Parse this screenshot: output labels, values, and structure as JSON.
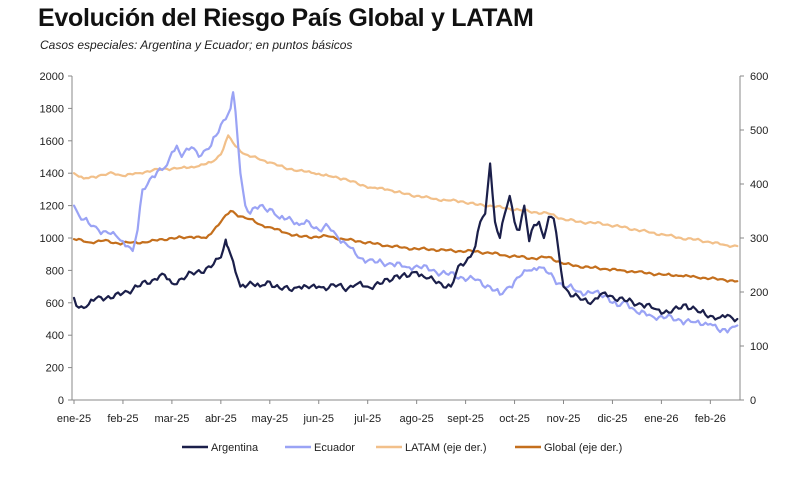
{
  "chart_data": {
    "type": "line",
    "title": "Evolución del Riesgo País Global y LATAM",
    "subtitle": "Casos especiales: Argentina y Ecuador; en puntos básicos",
    "categories": [
      "ene-25",
      "feb-25",
      "mar-25",
      "abr-25",
      "may-25",
      "jun-25",
      "jul-25",
      "ago-25",
      "sept-25",
      "oct-25",
      "nov-25",
      "dic-25",
      "ene-26",
      "feb-26"
    ],
    "y_left": {
      "min": 0,
      "max": 2000,
      "step": 200,
      "ticks": [
        "0",
        "200",
        "400",
        "600",
        "800",
        "1000",
        "1200",
        "1400",
        "1600",
        "1800",
        "2000"
      ]
    },
    "y_right": {
      "min": 0,
      "max": 600,
      "step": 100,
      "ticks": [
        "0",
        "100",
        "200",
        "300",
        "400",
        "500",
        "600"
      ]
    },
    "grid": false,
    "legend_position": "bottom",
    "series": [
      {
        "name": "Argentina",
        "axis": "left",
        "color": "#1b1f4a",
        "width": 2.2,
        "points": [
          [
            0,
            630
          ],
          [
            0.1,
            570
          ],
          [
            0.3,
            590
          ],
          [
            0.5,
            640
          ],
          [
            0.8,
            630
          ],
          [
            1.0,
            660
          ],
          [
            1.3,
            700
          ],
          [
            1.6,
            740
          ],
          [
            1.8,
            780
          ],
          [
            2.0,
            720
          ],
          [
            2.2,
            750
          ],
          [
            2.5,
            790
          ],
          [
            2.8,
            820
          ],
          [
            3.0,
            880
          ],
          [
            3.1,
            990
          ],
          [
            3.15,
            940
          ],
          [
            3.3,
            790
          ],
          [
            3.4,
            700
          ],
          [
            3.6,
            730
          ],
          [
            3.8,
            700
          ],
          [
            4.0,
            730
          ],
          [
            4.2,
            690
          ],
          [
            4.4,
            680
          ],
          [
            4.6,
            700
          ],
          [
            4.8,
            690
          ],
          [
            5.0,
            700
          ],
          [
            5.2,
            690
          ],
          [
            5.4,
            710
          ],
          [
            5.6,
            690
          ],
          [
            5.8,
            720
          ],
          [
            6.0,
            700
          ],
          [
            6.3,
            720
          ],
          [
            6.6,
            770
          ],
          [
            6.8,
            760
          ],
          [
            7.0,
            790
          ],
          [
            7.2,
            750
          ],
          [
            7.5,
            720
          ],
          [
            7.7,
            700
          ],
          [
            7.9,
            840
          ],
          [
            8.0,
            850
          ],
          [
            8.2,
            950
          ],
          [
            8.3,
            1100
          ],
          [
            8.4,
            1150
          ],
          [
            8.5,
            1460
          ],
          [
            8.6,
            1100
          ],
          [
            8.7,
            1000
          ],
          [
            8.8,
            1150
          ],
          [
            8.9,
            1260
          ],
          [
            9.0,
            1100
          ],
          [
            9.1,
            1050
          ],
          [
            9.2,
            1200
          ],
          [
            9.3,
            980
          ],
          [
            9.4,
            1080
          ],
          [
            9.5,
            1100
          ],
          [
            9.6,
            1000
          ],
          [
            9.7,
            1130
          ],
          [
            9.8,
            1120
          ],
          [
            9.9,
            920
          ],
          [
            10.0,
            700
          ],
          [
            10.2,
            640
          ],
          [
            10.4,
            620
          ],
          [
            10.6,
            610
          ],
          [
            10.8,
            660
          ],
          [
            11.0,
            640
          ],
          [
            11.3,
            610
          ],
          [
            11.6,
            590
          ],
          [
            11.9,
            560
          ],
          [
            12.2,
            540
          ],
          [
            12.5,
            590
          ],
          [
            12.8,
            540
          ],
          [
            13.0,
            520
          ],
          [
            13.2,
            510
          ],
          [
            13.4,
            520
          ],
          [
            13.55,
            500
          ]
        ]
      },
      {
        "name": "Ecuador",
        "axis": "left",
        "color": "#9aa3f5",
        "width": 2.2,
        "points": [
          [
            0,
            1200
          ],
          [
            0.1,
            1140
          ],
          [
            0.3,
            1090
          ],
          [
            0.5,
            1050
          ],
          [
            0.7,
            1030
          ],
          [
            0.9,
            1000
          ],
          [
            1.1,
            950
          ],
          [
            1.2,
            920
          ],
          [
            1.3,
            1050
          ],
          [
            1.4,
            1300
          ],
          [
            1.6,
            1380
          ],
          [
            1.8,
            1420
          ],
          [
            1.9,
            1450
          ],
          [
            2.0,
            1530
          ],
          [
            2.1,
            1570
          ],
          [
            2.2,
            1500
          ],
          [
            2.4,
            1560
          ],
          [
            2.6,
            1510
          ],
          [
            2.8,
            1570
          ],
          [
            3.0,
            1700
          ],
          [
            3.2,
            1800
          ],
          [
            3.25,
            1900
          ],
          [
            3.3,
            1780
          ],
          [
            3.4,
            1400
          ],
          [
            3.5,
            1200
          ],
          [
            3.6,
            1150
          ],
          [
            3.8,
            1200
          ],
          [
            4.0,
            1180
          ],
          [
            4.2,
            1120
          ],
          [
            4.4,
            1130
          ],
          [
            4.6,
            1080
          ],
          [
            4.8,
            1100
          ],
          [
            5.0,
            1050
          ],
          [
            5.2,
            1070
          ],
          [
            5.4,
            1000
          ],
          [
            5.6,
            950
          ],
          [
            5.8,
            880
          ],
          [
            6.0,
            860
          ],
          [
            6.2,
            850
          ],
          [
            6.5,
            840
          ],
          [
            6.8,
            820
          ],
          [
            7.0,
            830
          ],
          [
            7.3,
            800
          ],
          [
            7.6,
            780
          ],
          [
            7.9,
            760
          ],
          [
            8.2,
            740
          ],
          [
            8.5,
            700
          ],
          [
            8.7,
            650
          ],
          [
            8.9,
            700
          ],
          [
            9.1,
            760
          ],
          [
            9.3,
            800
          ],
          [
            9.5,
            820
          ],
          [
            9.7,
            780
          ],
          [
            9.9,
            720
          ],
          [
            10.1,
            700
          ],
          [
            10.3,
            670
          ],
          [
            10.6,
            660
          ],
          [
            10.9,
            640
          ],
          [
            11.1,
            580
          ],
          [
            11.3,
            600
          ],
          [
            11.5,
            540
          ],
          [
            11.8,
            520
          ],
          [
            12.1,
            510
          ],
          [
            12.4,
            490
          ],
          [
            12.7,
            480
          ],
          [
            13.0,
            470
          ],
          [
            13.2,
            420
          ],
          [
            13.4,
            440
          ],
          [
            13.55,
            460
          ]
        ]
      },
      {
        "name": "LATAM (eje der.)",
        "axis": "right",
        "color": "#f2c08a",
        "width": 2.2,
        "points": [
          [
            0,
            420
          ],
          [
            0.2,
            410
          ],
          [
            0.5,
            415
          ],
          [
            0.8,
            420
          ],
          [
            1.0,
            415
          ],
          [
            1.3,
            420
          ],
          [
            1.6,
            425
          ],
          [
            1.9,
            428
          ],
          [
            2.2,
            430
          ],
          [
            2.5,
            432
          ],
          [
            2.8,
            440
          ],
          [
            3.0,
            455
          ],
          [
            3.15,
            490
          ],
          [
            3.3,
            470
          ],
          [
            3.5,
            455
          ],
          [
            3.8,
            445
          ],
          [
            4.0,
            440
          ],
          [
            4.3,
            430
          ],
          [
            4.6,
            425
          ],
          [
            4.9,
            420
          ],
          [
            5.2,
            415
          ],
          [
            5.5,
            410
          ],
          [
            5.8,
            400
          ],
          [
            6.1,
            393
          ],
          [
            6.4,
            390
          ],
          [
            6.7,
            383
          ],
          [
            7.0,
            378
          ],
          [
            7.3,
            373
          ],
          [
            7.6,
            370
          ],
          [
            7.9,
            368
          ],
          [
            8.2,
            362
          ],
          [
            8.5,
            360
          ],
          [
            8.8,
            355
          ],
          [
            9.1,
            352
          ],
          [
            9.4,
            348
          ],
          [
            9.7,
            345
          ],
          [
            10.0,
            335
          ],
          [
            10.3,
            330
          ],
          [
            10.6,
            328
          ],
          [
            10.9,
            325
          ],
          [
            11.2,
            320
          ],
          [
            11.5,
            315
          ],
          [
            11.8,
            310
          ],
          [
            12.1,
            305
          ],
          [
            12.4,
            300
          ],
          [
            12.7,
            297
          ],
          [
            13.0,
            292
          ],
          [
            13.3,
            287
          ],
          [
            13.55,
            285
          ]
        ]
      },
      {
        "name": "Global (eje der.)",
        "axis": "right",
        "color": "#c46f1d",
        "width": 2.2,
        "points": [
          [
            0,
            298
          ],
          [
            0.3,
            292
          ],
          [
            0.6,
            295
          ],
          [
            0.9,
            290
          ],
          [
            1.2,
            292
          ],
          [
            1.5,
            292
          ],
          [
            1.8,
            298
          ],
          [
            2.1,
            300
          ],
          [
            2.4,
            302
          ],
          [
            2.7,
            300
          ],
          [
            3.0,
            330
          ],
          [
            3.2,
            350
          ],
          [
            3.4,
            340
          ],
          [
            3.6,
            335
          ],
          [
            3.8,
            325
          ],
          [
            4.0,
            320
          ],
          [
            4.3,
            310
          ],
          [
            4.6,
            303
          ],
          [
            4.9,
            302
          ],
          [
            5.2,
            303
          ],
          [
            5.5,
            298
          ],
          [
            5.8,
            294
          ],
          [
            6.1,
            290
          ],
          [
            6.4,
            286
          ],
          [
            6.7,
            282
          ],
          [
            7.0,
            280
          ],
          [
            7.3,
            279
          ],
          [
            7.6,
            277
          ],
          [
            7.9,
            276
          ],
          [
            8.2,
            275
          ],
          [
            8.5,
            272
          ],
          [
            8.8,
            268
          ],
          [
            9.1,
            265
          ],
          [
            9.4,
            262
          ],
          [
            9.7,
            265
          ],
          [
            10.0,
            252
          ],
          [
            10.3,
            248
          ],
          [
            10.6,
            245
          ],
          [
            10.9,
            242
          ],
          [
            11.2,
            240
          ],
          [
            11.5,
            237
          ],
          [
            11.8,
            234
          ],
          [
            12.1,
            232
          ],
          [
            12.4,
            230
          ],
          [
            12.7,
            228
          ],
          [
            13.0,
            225
          ],
          [
            13.3,
            222
          ],
          [
            13.55,
            220
          ]
        ]
      }
    ]
  }
}
